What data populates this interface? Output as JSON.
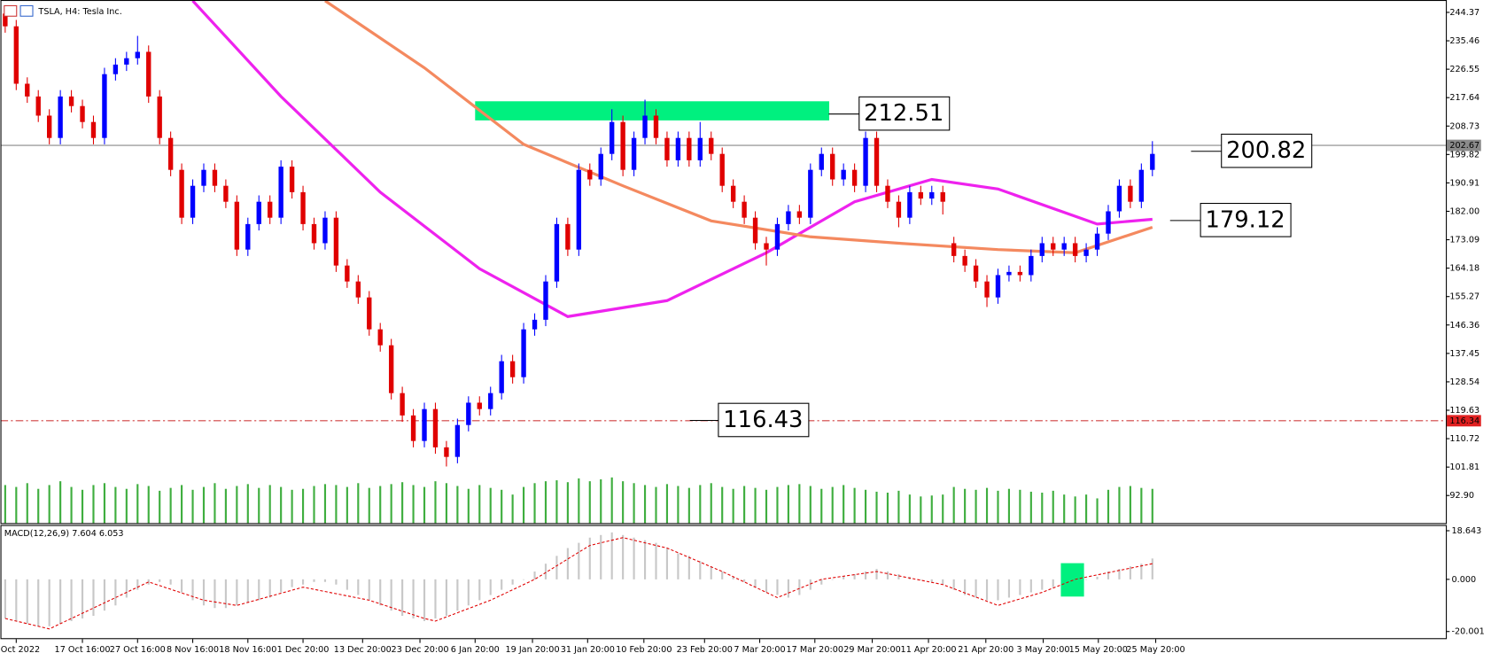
{
  "chart_data": [
    {
      "type": "candlestick",
      "title": "TSLA, H4: Tesla Inc.",
      "up_color": "#0000ff",
      "down_color": "#e00000",
      "volume_color": "#3fae3f",
      "ohlc": [
        [
          244,
          246,
          238,
          240
        ],
        [
          240,
          242,
          220,
          222
        ],
        [
          222,
          224,
          216,
          218
        ],
        [
          218,
          220,
          210,
          212
        ],
        [
          212,
          214,
          203,
          205
        ],
        [
          205,
          220,
          203,
          218
        ],
        [
          218,
          220,
          213,
          215
        ],
        [
          215,
          217,
          208,
          210
        ],
        [
          210,
          212,
          203,
          205
        ],
        [
          205,
          227,
          203,
          225
        ],
        [
          225,
          230,
          223,
          228
        ],
        [
          228,
          232,
          226,
          230
        ],
        [
          230,
          237,
          228,
          232
        ],
        [
          232,
          234,
          216,
          218
        ],
        [
          218,
          220,
          203,
          205
        ],
        [
          205,
          207,
          193,
          195
        ],
        [
          195,
          197,
          178,
          180
        ],
        [
          180,
          192,
          178,
          190
        ],
        [
          190,
          197,
          188,
          195
        ],
        [
          195,
          197,
          188,
          190
        ],
        [
          190,
          192,
          183,
          185
        ],
        [
          185,
          187,
          168,
          170
        ],
        [
          170,
          180,
          168,
          178
        ],
        [
          178,
          187,
          176,
          185
        ],
        [
          185,
          187,
          178,
          180
        ],
        [
          180,
          198,
          178,
          196
        ],
        [
          196,
          198,
          186,
          188
        ],
        [
          188,
          190,
          176,
          178
        ],
        [
          178,
          180,
          170,
          172
        ],
        [
          172,
          182,
          170,
          180
        ],
        [
          180,
          182,
          163,
          165
        ],
        [
          165,
          167,
          158,
          160
        ],
        [
          160,
          162,
          153,
          155
        ],
        [
          155,
          157,
          143,
          145
        ],
        [
          145,
          147,
          138,
          140
        ],
        [
          140,
          142,
          123,
          125
        ],
        [
          125,
          127,
          116,
          118
        ],
        [
          118,
          120,
          108,
          110
        ],
        [
          110,
          122,
          108,
          120
        ],
        [
          120,
          122,
          106,
          108
        ],
        [
          108,
          110,
          102,
          105
        ],
        [
          105,
          117,
          103,
          115
        ],
        [
          115,
          124,
          113,
          122
        ],
        [
          122,
          124,
          118,
          120
        ],
        [
          120,
          127,
          118,
          125
        ],
        [
          125,
          137,
          123,
          135
        ],
        [
          135,
          137,
          128,
          130
        ],
        [
          130,
          147,
          128,
          145
        ],
        [
          145,
          150,
          143,
          148
        ],
        [
          148,
          162,
          146,
          160
        ],
        [
          160,
          180,
          158,
          178
        ],
        [
          178,
          180,
          168,
          170
        ],
        [
          170,
          197,
          168,
          195
        ],
        [
          195,
          197,
          190,
          192
        ],
        [
          192,
          202,
          190,
          200
        ],
        [
          200,
          214,
          198,
          210
        ],
        [
          210,
          212,
          193,
          195
        ],
        [
          195,
          207,
          193,
          205
        ],
        [
          205,
          217,
          203,
          212
        ],
        [
          212,
          214,
          203,
          205
        ],
        [
          205,
          207,
          196,
          198
        ],
        [
          198,
          207,
          196,
          205
        ],
        [
          205,
          207,
          196,
          198
        ],
        [
          198,
          210,
          196,
          205
        ],
        [
          205,
          207,
          198,
          200
        ],
        [
          200,
          202,
          188,
          190
        ],
        [
          190,
          192,
          183,
          185
        ],
        [
          185,
          187,
          178,
          180
        ],
        [
          180,
          182,
          170,
          172
        ],
        [
          172,
          174,
          165,
          170
        ],
        [
          170,
          180,
          168,
          178
        ],
        [
          178,
          184,
          176,
          182
        ],
        [
          182,
          184,
          178,
          180
        ],
        [
          180,
          197,
          178,
          195
        ],
        [
          195,
          202,
          193,
          200
        ],
        [
          200,
          202,
          190,
          192
        ],
        [
          192,
          197,
          190,
          195
        ],
        [
          195,
          197,
          188,
          190
        ],
        [
          190,
          207,
          188,
          205
        ],
        [
          205,
          207,
          188,
          190
        ],
        [
          190,
          192,
          183,
          185
        ],
        [
          185,
          187,
          177,
          180
        ],
        [
          180,
          190,
          178,
          188
        ],
        [
          188,
          190,
          184,
          186
        ],
        [
          186,
          190,
          184,
          188
        ],
        [
          188,
          190,
          181,
          185
        ],
        [
          172,
          174,
          166,
          168
        ],
        [
          168,
          170,
          163,
          165
        ],
        [
          165,
          167,
          158,
          160
        ],
        [
          160,
          162,
          152,
          155
        ],
        [
          155,
          164,
          153,
          162
        ],
        [
          162,
          165,
          160,
          163
        ],
        [
          163,
          165,
          160,
          162
        ],
        [
          162,
          170,
          160,
          168
        ],
        [
          168,
          174,
          166,
          172
        ],
        [
          172,
          174,
          168,
          170
        ],
        [
          170,
          174,
          168,
          172
        ],
        [
          172,
          174,
          166,
          168
        ],
        [
          168,
          172,
          166,
          170
        ],
        [
          170,
          177,
          168,
          175
        ],
        [
          175,
          184,
          173,
          182
        ],
        [
          182,
          192,
          180,
          190
        ],
        [
          190,
          192,
          183,
          185
        ],
        [
          185,
          197,
          183,
          195
        ],
        [
          195,
          204,
          193,
          200
        ]
      ],
      "volume": [
        40,
        38,
        42,
        36,
        40,
        44,
        38,
        35,
        40,
        42,
        38,
        36,
        41,
        39,
        34,
        37,
        40,
        35,
        38,
        42,
        36,
        39,
        41,
        37,
        40,
        38,
        35,
        36,
        39,
        41,
        40,
        38,
        42,
        37,
        39,
        41,
        43,
        40,
        38,
        44,
        42,
        39,
        36,
        40,
        37,
        35,
        30,
        38,
        42,
        44,
        45,
        43,
        47,
        44,
        46,
        48,
        44,
        42,
        40,
        38,
        41,
        39,
        37,
        40,
        42,
        38,
        36,
        39,
        37,
        35,
        38,
        40,
        41,
        39,
        36,
        38,
        40,
        37,
        35,
        33,
        32,
        34,
        30,
        28,
        29,
        30,
        38,
        36,
        35,
        37,
        34,
        36,
        35,
        33,
        32,
        34,
        30,
        28,
        30,
        26,
        35,
        38,
        39,
        37,
        36
      ],
      "lines": [
        {
          "color": "#ee22ee",
          "x": [
            17,
            25,
            34,
            43,
            51,
            60,
            69,
            77,
            84,
            90,
            99,
            104
          ],
          "values": [
            248,
            218,
            188,
            164,
            149,
            154,
            169,
            185,
            192,
            189,
            178,
            179.5
          ]
        },
        {
          "color": "#f4895f",
          "x": [
            29,
            38,
            47,
            56,
            64,
            73,
            81,
            90,
            97,
            104
          ],
          "values": [
            248,
            227,
            203,
            190,
            179,
            174,
            172,
            170,
            169,
            177
          ]
        }
      ],
      "ylim": [
        84.25,
        248.25
      ],
      "yticks": [
        {
          "value": 92.9,
          "label": "92.90"
        },
        101.81,
        110.72,
        119.63,
        128.54,
        137.45,
        146.36,
        155.27,
        164.18,
        173.09,
        {
          "value": 182,
          "label": "182.00"
        },
        190.91,
        199.82,
        208.73,
        217.64,
        226.55,
        235.46,
        244.37
      ],
      "xlim": [
        -0.43,
        130.6
      ],
      "xticks": [
        {
          "value": 1,
          "label": "5 Oct 2022"
        },
        {
          "value": 7,
          "label": "17 Oct 16:00"
        },
        {
          "value": 12,
          "label": "27 Oct 16:00"
        },
        {
          "value": 17,
          "label": "8 Nov 16:00"
        },
        {
          "value": 22,
          "label": "18 Nov 16:00"
        },
        {
          "value": 27,
          "label": "1 Dec 20:00"
        },
        {
          "value": 32.4,
          "label": "13 Dec 20:00"
        },
        {
          "value": 37.6,
          "label": "23 Dec 20:00"
        },
        {
          "value": 42.6,
          "label": "6 Jan 20:00"
        },
        {
          "value": 47.8,
          "label": "19 Jan 20:00"
        },
        {
          "value": 52.8,
          "label": "31 Jan 20:00"
        },
        {
          "value": 57.9,
          "label": "10 Feb 20:00"
        },
        {
          "value": 63.4,
          "label": "23 Feb 20:00"
        },
        {
          "value": 68.4,
          "label": "7 Mar 20:00"
        },
        {
          "value": 73.4,
          "label": "17 Mar 20:00"
        },
        {
          "value": 78.6,
          "label": "29 Mar 20:00"
        },
        {
          "value": 83.7,
          "label": "11 Apr 20:00"
        },
        {
          "value": 88.9,
          "label": "21 Apr 20:00"
        },
        {
          "value": 94.1,
          "label": "3 May 20:00"
        },
        {
          "value": 99.1,
          "label": "15 May 20:00"
        },
        {
          "value": 104.3,
          "label": "25 May 20:00"
        }
      ],
      "price_line": 202.67,
      "level_line": 116.34,
      "zone": {
        "xlim": [
          42.6,
          74.7
        ],
        "ylim": [
          210.5,
          216.5
        ],
        "color": "#00f07f"
      },
      "annotations": [
        212.51,
        200.82,
        179.12,
        116.43
      ]
    },
    {
      "type": "macd",
      "label": "MACD(12,26,9) 7.604 6.053",
      "histogram": [
        -15,
        -16,
        -17,
        -18,
        -18,
        -17,
        -16,
        -15,
        -14,
        -12,
        -10,
        -7,
        -4,
        -2,
        -1,
        -2,
        -5,
        -8,
        -10,
        -11,
        -11,
        -10,
        -9,
        -8,
        -7,
        -5,
        -3,
        -2,
        -1,
        -1,
        -2,
        -4,
        -6,
        -8,
        -10,
        -12,
        -14,
        -15,
        -16,
        -15,
        -14,
        -12,
        -10,
        -8,
        -6,
        -4,
        -2,
        0,
        3,
        6,
        9,
        12,
        14,
        16,
        17,
        18,
        17,
        16,
        15,
        14,
        12,
        10,
        9,
        7,
        5,
        3,
        1,
        -1,
        -3,
        -5,
        -6,
        -7,
        -6,
        -4,
        -2,
        0,
        1,
        2,
        3,
        4,
        3,
        2,
        1,
        0,
        -1,
        -2,
        -4,
        -6,
        -7,
        -8,
        -8,
        -7,
        -6,
        -5,
        -4,
        -3,
        -2,
        -1,
        0,
        1,
        3,
        4,
        5,
        6,
        8
      ],
      "hist_color": "#c8c8c8",
      "signal": {
        "color": "#e00000",
        "x": [
          0,
          4,
          13,
          18,
          21,
          27,
          33,
          38,
          39,
          44,
          48,
          53,
          56,
          60,
          65,
          70,
          74,
          79,
          85,
          90,
          94,
          97,
          104
        ],
        "values": [
          -15,
          -19,
          -1,
          -8,
          -10,
          -3,
          -8,
          -15,
          -16,
          -8,
          0,
          13,
          16,
          12,
          3,
          -7,
          0,
          3,
          -2,
          -10,
          -5,
          0,
          6
        ]
      },
      "ylim": [
        -22.92,
        20.84
      ],
      "yticks": [
        -20.001,
        {
          "value": 0,
          "label": "0.000"
        },
        18.643
      ],
      "zone": {
        "xlim": [
          95.7,
          97.8
        ],
        "ylim": [
          -6.6,
          6.2
        ],
        "color": "#00f07f"
      }
    }
  ]
}
